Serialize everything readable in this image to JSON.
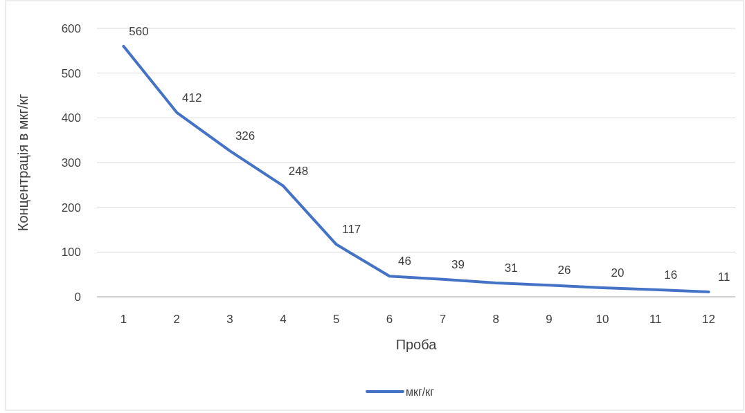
{
  "chart_data": {
    "type": "line",
    "xlabel": "Проба",
    "ylabel": "Концентрація в мкг/кг",
    "x": [
      1,
      2,
      3,
      4,
      5,
      6,
      7,
      8,
      9,
      10,
      11,
      12
    ],
    "xlim": [
      0.5,
      12.5
    ],
    "xticks": [
      1,
      2,
      3,
      4,
      5,
      6,
      7,
      8,
      9,
      10,
      11,
      12
    ],
    "series": [
      {
        "name": "мкг/кг",
        "color": "#4472c4",
        "values": [
          560,
          412,
          326,
          248,
          117,
          46,
          39,
          31,
          26,
          20,
          16,
          11
        ]
      }
    ],
    "ylim": [
      0,
      600
    ],
    "yticks": [
      0,
      100,
      200,
      300,
      400,
      500,
      600
    ],
    "grid": "y",
    "legend": "bottom",
    "data_labels": true,
    "marker": "none",
    "line_style": "solid"
  }
}
